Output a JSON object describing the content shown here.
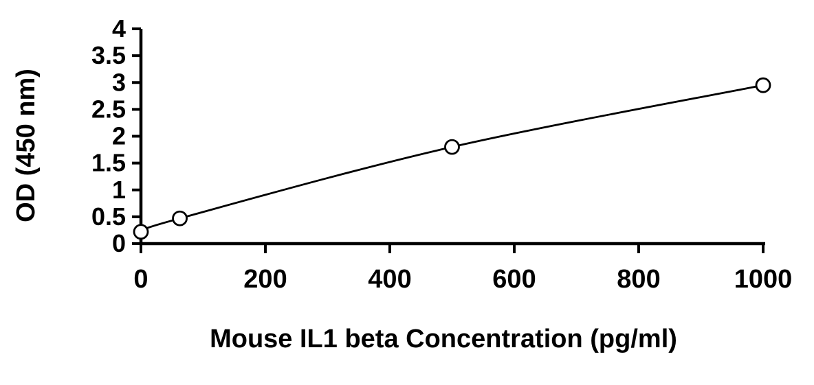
{
  "figure": {
    "background": "#ffffff",
    "axis_color": "#000000"
  },
  "chart_data": {
    "type": "line",
    "title": "",
    "xlabel": "Mouse IL1 beta Concentration (pg/ml)",
    "ylabel": "OD (450 nm)",
    "x": [
      0,
      62.5,
      500,
      1000
    ],
    "y": [
      0.22,
      0.47,
      1.8,
      2.95
    ],
    "xlim": [
      0,
      1000
    ],
    "ylim": [
      0,
      4
    ],
    "x_ticks": [
      0,
      200,
      400,
      600,
      800,
      1000
    ],
    "y_ticks": [
      0,
      0.5,
      1,
      1.5,
      2,
      2.5,
      3,
      3.5,
      4
    ],
    "grid": false,
    "legend": "none",
    "line_color": "#000000",
    "marker": "open-circle",
    "marker_fill": "#ffffff"
  }
}
